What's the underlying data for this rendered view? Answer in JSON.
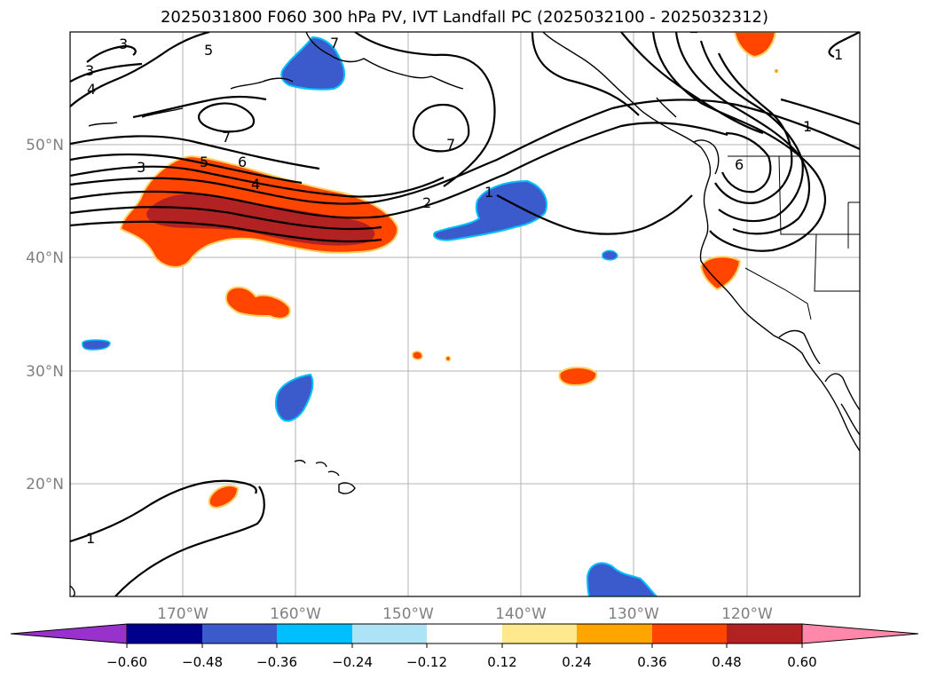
{
  "title": "2025031800 F060 300 hPa PV, IVT Landfall PC (2025032100 - 2025032312)",
  "map": {
    "lon_range": [
      -180,
      -110
    ],
    "lat_range": [
      10,
      60
    ],
    "lon_ticks": [
      "170°W",
      "160°W",
      "150°W",
      "140°W",
      "130°W",
      "120°W"
    ],
    "lat_ticks": [
      "50°N",
      "40°N",
      "30°N",
      "20°N"
    ],
    "grid": true
  },
  "contour_labels": [
    "3",
    "3",
    "4",
    "5",
    "7",
    "7",
    "3",
    "5",
    "6",
    "4",
    "2",
    "1",
    "7",
    "6",
    "1",
    "1",
    "1"
  ],
  "colorbar": {
    "ticks": [
      "−0.60",
      "−0.48",
      "−0.36",
      "−0.24",
      "−0.12",
      "0.12",
      "0.24",
      "0.36",
      "0.48",
      "0.60"
    ],
    "colors": [
      "#9932cc",
      "#00008b",
      "#3b5bcc",
      "#00bfff",
      "#ade3f7",
      "#ffffff",
      "#ffe98c",
      "#ffa500",
      "#ff4500",
      "#b22222",
      "#ff88aa"
    ]
  }
}
